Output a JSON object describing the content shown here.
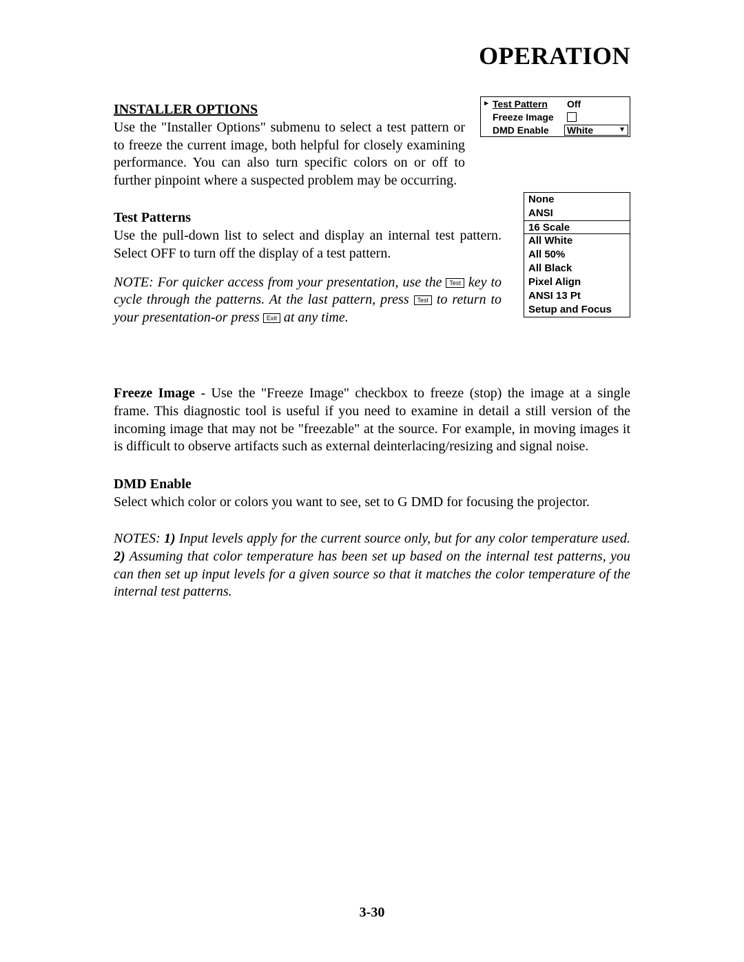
{
  "page_title": "OPERATION",
  "page_number": "3-30",
  "menu_panel": {
    "rows": [
      {
        "label": "Test Pattern",
        "value": "Off",
        "arrow": "▸",
        "underline": true,
        "type": "text"
      },
      {
        "label": "Freeze Image",
        "value": "",
        "underline": false,
        "type": "checkbox"
      },
      {
        "label": "DMD Enable",
        "value": "White",
        "underline": false,
        "type": "dropdown"
      }
    ]
  },
  "pattern_list": {
    "items": [
      "None",
      "ANSI",
      "16 Scale",
      "All White",
      "All 50%",
      "All Black",
      "Pixel Align",
      "ANSI 13 Pt",
      "Setup and Focus"
    ],
    "selected_index": 2
  },
  "installer_heading": "INSTALLER OPTIONS",
  "installer_text": "Use the \"Installer Options\" submenu to select a test pattern or to freeze the current image, both helpful for closely examining performance. You can also turn specific colors on or off to further pinpoint where a suspected problem may be occurring.",
  "test_patterns_heading": "Test Patterns",
  "test_patterns_text": "Use the pull-down list to select and display an internal test pattern.  Select OFF to turn off the display of a test pattern.",
  "note_prefix": "NOTE: For quicker access from your presentation, use the ",
  "note_key1": "Test",
  "note_mid1": " key to cycle through the patterns. At the last pattern, press ",
  "note_key2": "Test",
  "note_mid2": " to return to your presentation-or press ",
  "note_key3": "Exit",
  "note_suffix": " at any time.",
  "freeze_bold": "Freeze Image",
  "freeze_text": " - Use the \"Freeze Image\" checkbox to freeze (stop) the image at a single frame. This diagnostic tool is useful if you need to examine in detail a still version of the incoming image that may not be \"freezable\" at the source. For example, in moving images it is difficult to observe artifacts such as external deinterlacing/resizing and signal noise.",
  "dmd_heading": "DMD Enable",
  "dmd_text": "Select which color or colors you want to see, set to G DMD for focusing the projector.",
  "notes2_prefix": "NOTES: ",
  "notes2_1b": "1)",
  "notes2_1": " Input levels apply for the current source only, but for any color temperature used. ",
  "notes2_2b": "2)",
  "notes2_2": " Assuming that color temperature has been set up based on the internal test patterns, you can then set up input levels for a given source so that it matches the color temperature of the internal test patterns."
}
